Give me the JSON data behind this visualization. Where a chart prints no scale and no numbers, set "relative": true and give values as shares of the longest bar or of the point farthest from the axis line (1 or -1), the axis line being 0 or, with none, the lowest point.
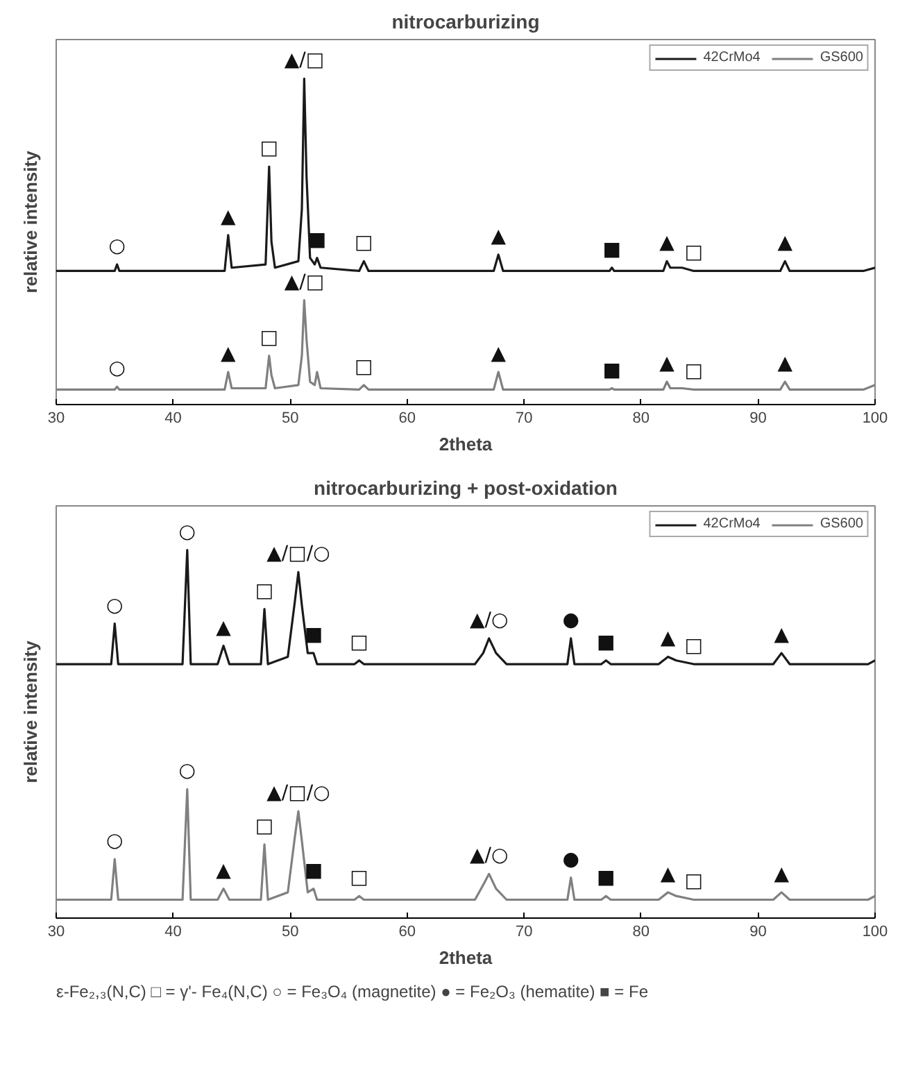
{
  "chart_data": [
    {
      "type": "line",
      "title": "nitrocarburizing",
      "xlabel": "2theta",
      "ylabel": "relative intensity",
      "relative": true,
      "xlim": [
        30,
        100
      ],
      "xticks": [
        30,
        40,
        50,
        60,
        70,
        80,
        90,
        100
      ],
      "legend": "top right",
      "grid": false,
      "series": [
        {
          "name": "42CrMo4",
          "color": "#1a1a1a",
          "x": [
            30,
            33,
            35.0,
            35.2,
            35.4,
            40,
            44.4,
            44.7,
            45.0,
            47.9,
            48.2,
            48.4,
            48.7,
            50.7,
            51.0,
            51.2,
            51.4,
            51.7,
            52.1,
            52.3,
            52.6,
            55.9,
            56.3,
            56.7,
            60,
            67.4,
            67.8,
            68.2,
            72,
            77.3,
            77.5,
            77.7,
            81.9,
            82.2,
            82.5,
            83.5,
            84.5,
            91.9,
            92.3,
            92.7,
            99,
            100
          ],
          "values": [
            0.41,
            0.41,
            0.41,
            0.43,
            0.41,
            0.41,
            0.41,
            0.52,
            0.42,
            0.43,
            0.73,
            0.5,
            0.42,
            0.44,
            0.6,
            1.0,
            0.7,
            0.45,
            0.43,
            0.45,
            0.42,
            0.41,
            0.44,
            0.41,
            0.41,
            0.41,
            0.46,
            0.41,
            0.41,
            0.41,
            0.42,
            0.41,
            0.41,
            0.44,
            0.42,
            0.42,
            0.41,
            0.41,
            0.44,
            0.41,
            0.41,
            0.42
          ]
        },
        {
          "name": "GS600",
          "color": "#808080",
          "x": [
            30,
            33,
            35.0,
            35.2,
            35.4,
            40,
            44.4,
            44.7,
            45.0,
            47.9,
            48.2,
            48.4,
            48.7,
            50.7,
            51.0,
            51.2,
            51.4,
            51.7,
            52.1,
            52.3,
            52.6,
            55.9,
            56.3,
            56.7,
            60,
            67.4,
            67.8,
            68.2,
            72,
            77.3,
            77.5,
            77.7,
            81.9,
            82.2,
            82.5,
            83.5,
            84.5,
            91.9,
            92.3,
            92.7,
            99,
            100
          ],
          "values": [
            0.046,
            0.046,
            0.046,
            0.055,
            0.046,
            0.046,
            0.046,
            0.1,
            0.05,
            0.05,
            0.15,
            0.09,
            0.05,
            0.06,
            0.15,
            0.32,
            0.2,
            0.07,
            0.06,
            0.1,
            0.05,
            0.046,
            0.06,
            0.046,
            0.046,
            0.046,
            0.1,
            0.046,
            0.046,
            0.046,
            0.05,
            0.046,
            0.046,
            0.07,
            0.05,
            0.05,
            0.046,
            0.046,
            0.07,
            0.046,
            0.046,
            0.06
          ]
        }
      ],
      "annotations": [
        {
          "text": "○",
          "x": 35.2,
          "y": 0.43
        },
        {
          "text": "▲",
          "x": 44.7,
          "y": 0.52
        },
        {
          "text": "□",
          "x": 48.2,
          "y": 0.73
        },
        {
          "text": "▲/□",
          "x": 51.2,
          "y": 1.0
        },
        {
          "text": "■",
          "x": 52.3,
          "y": 0.45
        },
        {
          "text": "□",
          "x": 56.3,
          "y": 0.44
        },
        {
          "text": "▲",
          "x": 67.8,
          "y": 0.46
        },
        {
          "text": "■",
          "x": 77.5,
          "y": 0.42
        },
        {
          "text": "▲",
          "x": 82.2,
          "y": 0.44
        },
        {
          "text": "□",
          "x": 84.5,
          "y": 0.41
        },
        {
          "text": "▲",
          "x": 92.3,
          "y": 0.44
        },
        {
          "text": "○",
          "x": 35.2,
          "y": 0.055
        },
        {
          "text": "▲",
          "x": 44.7,
          "y": 0.1
        },
        {
          "text": "□",
          "x": 48.2,
          "y": 0.15
        },
        {
          "text": "▲/□",
          "x": 51.2,
          "y": 0.32
        },
        {
          "text": "□",
          "x": 56.3,
          "y": 0.06
        },
        {
          "text": "▲",
          "x": 67.8,
          "y": 0.1
        },
        {
          "text": "■",
          "x": 77.5,
          "y": 0.05
        },
        {
          "text": "▲",
          "x": 82.2,
          "y": 0.07
        },
        {
          "text": "□",
          "x": 84.5,
          "y": 0.046
        },
        {
          "text": "▲",
          "x": 92.3,
          "y": 0.07
        }
      ]
    },
    {
      "type": "line",
      "title": "nitrocarburizing + post-oxidation",
      "xlabel": "2theta",
      "ylabel": "relative intensity",
      "relative": true,
      "xlim": [
        30,
        100
      ],
      "xticks": [
        30,
        40,
        50,
        60,
        70,
        80,
        90,
        100
      ],
      "legend": "top right",
      "grid": false,
      "series": [
        {
          "name": "42CrMo4",
          "color": "#1a1a1a",
          "x": [
            30,
            34.7,
            35.0,
            35.3,
            40.8,
            41.2,
            41.5,
            43.8,
            44.3,
            44.8,
            47.5,
            47.8,
            48.1,
            49.8,
            50.4,
            50.7,
            51.0,
            51.5,
            52.0,
            52.3,
            55.5,
            55.9,
            56.3,
            65.8,
            66.5,
            67.0,
            67.6,
            68.5,
            73.7,
            74.0,
            74.3,
            76.6,
            77.0,
            77.4,
            81.5,
            82.3,
            83.0,
            84.5,
            91.3,
            92.0,
            92.7,
            99.4,
            100
          ],
          "values": [
            0.69,
            0.69,
            0.8,
            0.69,
            0.69,
            1.0,
            0.69,
            0.69,
            0.74,
            0.69,
            0.69,
            0.84,
            0.69,
            0.71,
            0.86,
            0.94,
            0.85,
            0.72,
            0.72,
            0.69,
            0.69,
            0.7,
            0.69,
            0.69,
            0.72,
            0.76,
            0.72,
            0.69,
            0.69,
            0.76,
            0.69,
            0.69,
            0.7,
            0.69,
            0.69,
            0.71,
            0.7,
            0.69,
            0.69,
            0.72,
            0.69,
            0.69,
            0.7
          ]
        },
        {
          "name": "GS600",
          "color": "#808080",
          "x": [
            30,
            34.7,
            35.0,
            35.3,
            40.8,
            41.2,
            41.5,
            43.8,
            44.3,
            44.8,
            47.5,
            47.8,
            48.1,
            49.8,
            50.4,
            50.7,
            51.0,
            51.5,
            52.0,
            52.3,
            55.5,
            55.9,
            56.3,
            65.8,
            66.5,
            67.0,
            67.6,
            68.5,
            73.7,
            74.0,
            74.3,
            76.6,
            77.0,
            77.4,
            81.5,
            82.3,
            83.0,
            84.5,
            91.3,
            92.0,
            92.7,
            99.4,
            100
          ],
          "values": [
            0.05,
            0.05,
            0.16,
            0.05,
            0.05,
            0.35,
            0.05,
            0.05,
            0.08,
            0.05,
            0.05,
            0.2,
            0.05,
            0.07,
            0.22,
            0.29,
            0.21,
            0.07,
            0.08,
            0.05,
            0.05,
            0.06,
            0.05,
            0.05,
            0.09,
            0.12,
            0.08,
            0.05,
            0.05,
            0.11,
            0.05,
            0.05,
            0.06,
            0.05,
            0.05,
            0.07,
            0.06,
            0.05,
            0.05,
            0.07,
            0.05,
            0.05,
            0.06
          ]
        }
      ],
      "annotations": [
        {
          "text": "○",
          "x": 35.0,
          "y": 0.8
        },
        {
          "text": "○",
          "x": 41.2,
          "y": 1.0
        },
        {
          "text": "▲/□/○",
          "x": 50.7,
          "y": 0.94
        },
        {
          "text": "□",
          "x": 47.8,
          "y": 0.84
        },
        {
          "text": "▲",
          "x": 44.3,
          "y": 0.74
        },
        {
          "text": "■",
          "x": 52.0,
          "y": 0.72
        },
        {
          "text": "□",
          "x": 55.9,
          "y": 0.7
        },
        {
          "text": "▲/○",
          "x": 67.0,
          "y": 0.76
        },
        {
          "text": "●",
          "x": 74.0,
          "y": 0.76
        },
        {
          "text": "■",
          "x": 77.0,
          "y": 0.7
        },
        {
          "text": "▲",
          "x": 82.3,
          "y": 0.71
        },
        {
          "text": "□",
          "x": 84.5,
          "y": 0.69
        },
        {
          "text": "▲",
          "x": 92.0,
          "y": 0.72
        },
        {
          "text": "○",
          "x": 35.0,
          "y": 0.16
        },
        {
          "text": "○",
          "x": 41.2,
          "y": 0.35
        },
        {
          "text": "▲/□/○",
          "x": 50.7,
          "y": 0.29
        },
        {
          "text": "□",
          "x": 47.8,
          "y": 0.2
        },
        {
          "text": "▲",
          "x": 44.3,
          "y": 0.08
        },
        {
          "text": "■",
          "x": 52.0,
          "y": 0.08
        },
        {
          "text": "□",
          "x": 55.9,
          "y": 0.06
        },
        {
          "text": "▲/○",
          "x": 67.0,
          "y": 0.12
        },
        {
          "text": "●",
          "x": 74.0,
          "y": 0.11
        },
        {
          "text": "■",
          "x": 77.0,
          "y": 0.06
        },
        {
          "text": "▲",
          "x": 82.3,
          "y": 0.07
        },
        {
          "text": "□",
          "x": 84.5,
          "y": 0.05
        },
        {
          "text": "▲",
          "x": 92.0,
          "y": 0.07
        },
        "ε-Fe₂,₃(N,C)  □ = γ'- Fe₄(N,C)  ○ = Fe₃O₄ (magnetite)  ● = Fe₂O₃ (hematite)  ■ = Fe"
      ]
    }
  ]
}
